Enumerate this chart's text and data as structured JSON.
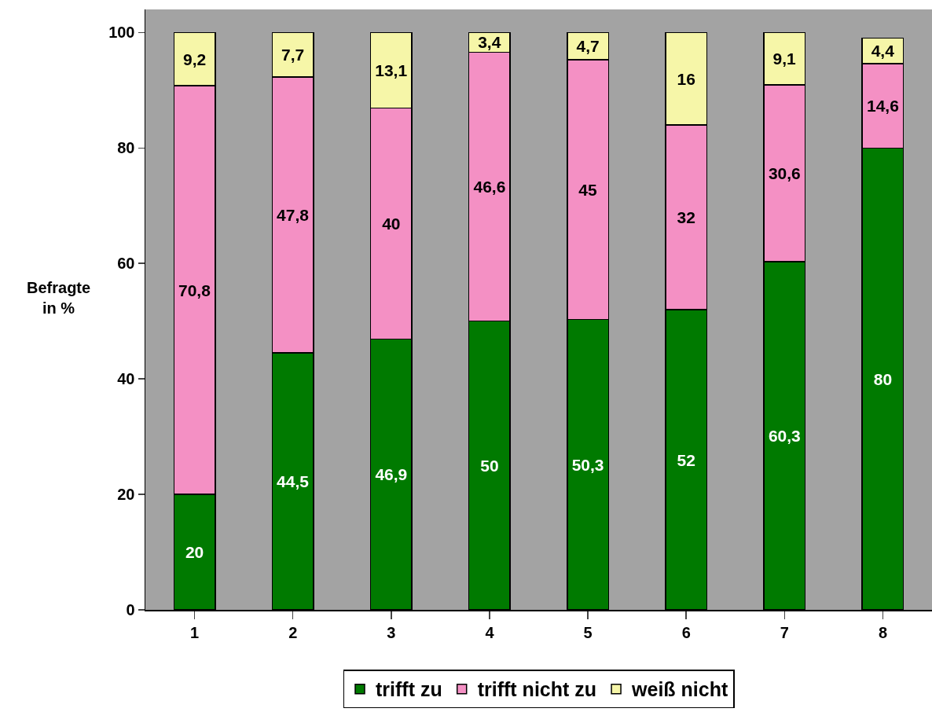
{
  "chart_data": {
    "type": "bar",
    "stacked": true,
    "ylabel": "Befragte in %",
    "categories": [
      "1",
      "2",
      "3",
      "4",
      "5",
      "6",
      "7",
      "8"
    ],
    "series": [
      {
        "name": "trifft zu",
        "color": "#007a00",
        "values": [
          20,
          44.5,
          46.9,
          50,
          50.3,
          52,
          60.3,
          80
        ],
        "value_labels": [
          "20",
          "44,5",
          "46,9",
          "50",
          "50,3",
          "52",
          "60,3",
          "80"
        ]
      },
      {
        "name": "trifft nicht zu",
        "color": "#f490c4",
        "values": [
          70.8,
          47.8,
          40,
          46.6,
          45,
          32,
          30.6,
          14.6
        ],
        "value_labels": [
          "70,8",
          "47,8",
          "40",
          "46,6",
          "45",
          "32",
          "30,6",
          "14,6"
        ]
      },
      {
        "name": "weiß nicht",
        "color": "#f6f6a8",
        "values": [
          9.2,
          7.7,
          13.1,
          3.4,
          4.7,
          16,
          9.1,
          4.4
        ],
        "value_labels": [
          "9,2",
          "7,7",
          "13,1",
          "3,4",
          "4,7",
          "16",
          "9,1",
          "4,4"
        ]
      }
    ],
    "ylim": [
      0,
      104
    ],
    "yticks": [
      0,
      20,
      40,
      60,
      80,
      100
    ],
    "grid": false,
    "legend": "bottom"
  }
}
